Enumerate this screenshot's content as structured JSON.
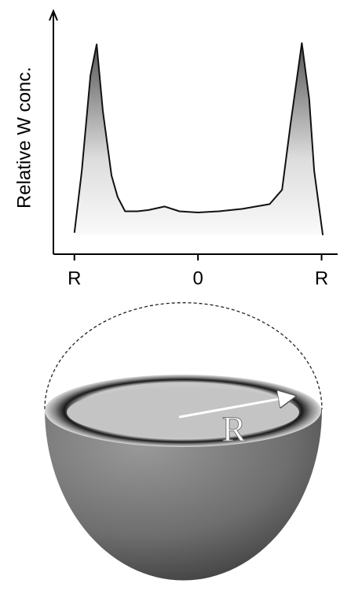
{
  "chart_data": {
    "type": "line",
    "ylabel": "Relative W conc.",
    "x": [
      -1.0,
      -0.94,
      -0.87,
      -0.82,
      -0.77,
      -0.7,
      -0.65,
      -0.59,
      -0.49,
      -0.4,
      -0.27,
      -0.15,
      0,
      0.17,
      0.36,
      0.58,
      0.68,
      0.75,
      0.84,
      0.9,
      0.94,
      1.01
    ],
    "values": [
      0.09,
      0.35,
      0.75,
      0.88,
      0.6,
      0.33,
      0.24,
      0.18,
      0.18,
      0.185,
      0.2,
      0.18,
      0.175,
      0.18,
      0.19,
      0.21,
      0.27,
      0.55,
      0.885,
      0.65,
      0.35,
      0.08
    ],
    "color": "#111111",
    "xlim": [
      -1.17,
      1.13
    ],
    "ylim": [
      0,
      1
    ],
    "xticks": [
      {
        "value": -1,
        "label": "R"
      },
      {
        "value": 0,
        "label": "0"
      },
      {
        "value": 1,
        "label": "R"
      }
    ]
  },
  "illustration": {
    "label": "R"
  }
}
